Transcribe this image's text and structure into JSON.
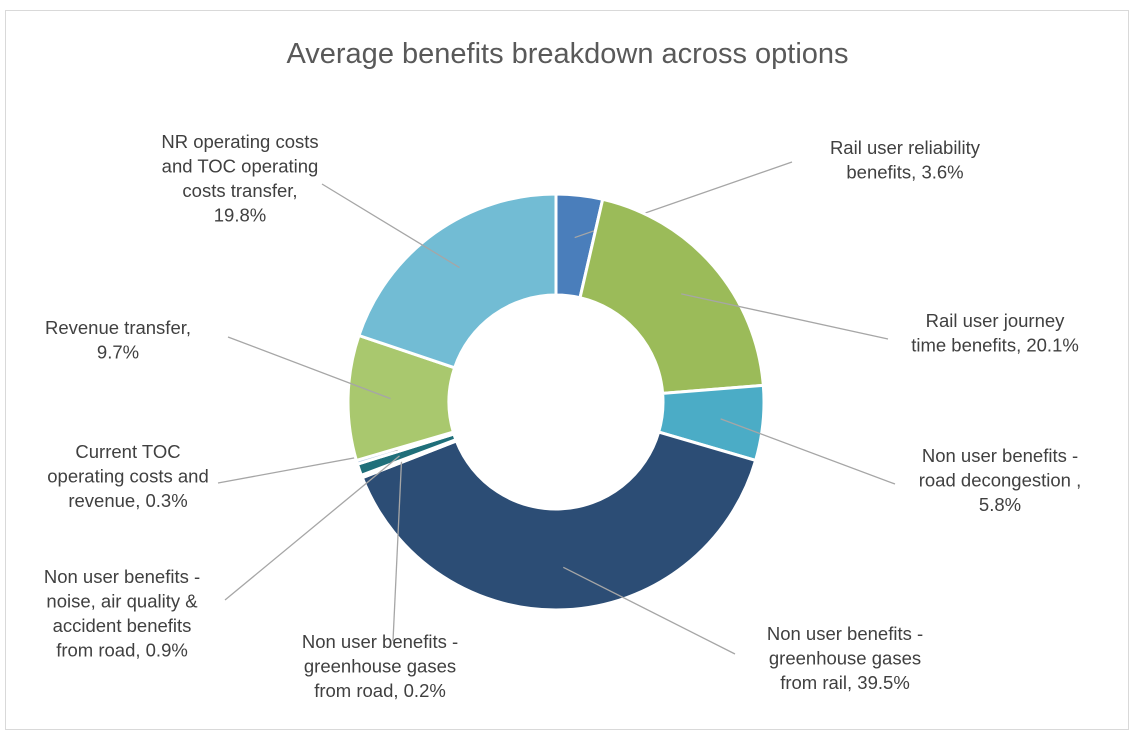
{
  "chart_data": {
    "type": "doughnut",
    "title": "Average benefits breakdown across options",
    "legend": "none",
    "slices": [
      {
        "name": "Rail user reliability benefits",
        "value": 3.6,
        "color": "#4a7ebb",
        "label_lines": [
          "Rail user reliability",
          "benefits, 3.6%"
        ]
      },
      {
        "name": "Rail user journey time benefits",
        "value": 20.1,
        "color": "#9bbb59",
        "label_lines": [
          "Rail user journey",
          "time benefits, 20.1%"
        ]
      },
      {
        "name": "Non user benefits - road decongestion",
        "value": 5.8,
        "color": "#4bacc6",
        "label_lines": [
          "Non user benefits -",
          "road decongestion ,",
          "5.8%"
        ]
      },
      {
        "name": "Non user benefits - greenhouse gases from rail",
        "value": 39.5,
        "color": "#2c4d75",
        "label_lines": [
          "Non user benefits -",
          "greenhouse gases",
          "from rail, 39.5%"
        ]
      },
      {
        "name": "Non user benefits - greenhouse gases from road",
        "value": 0.2,
        "color": "#7f9ec9",
        "label_lines": [
          "Non user benefits -",
          "greenhouse gases",
          "from road, 0.2%"
        ]
      },
      {
        "name": "Non user benefits - noise, air quality & accident benefits from road",
        "value": 0.9,
        "color": "#1f6f7a",
        "label_lines": [
          "Non user benefits -",
          "noise, air quality &",
          "accident benefits",
          "from road, 0.9%"
        ]
      },
      {
        "name": "Current TOC operating costs and revenue",
        "value": 0.3,
        "color": "#b8cce4",
        "label_lines": [
          "Current TOC",
          "operating costs and",
          "revenue,  0.3%"
        ]
      },
      {
        "name": "Revenue transfer",
        "value": 9.7,
        "color": "#a9c86e",
        "label_lines": [
          "Revenue  transfer,",
          "9.7%"
        ]
      },
      {
        "name": "NR operating costs and TOC operating costs transfer",
        "value": 19.8,
        "color": "#72bcd4",
        "label_lines": [
          "NR operating costs",
          "and TOC operating",
          "costs transfer,",
          "19.8%"
        ]
      }
    ]
  }
}
